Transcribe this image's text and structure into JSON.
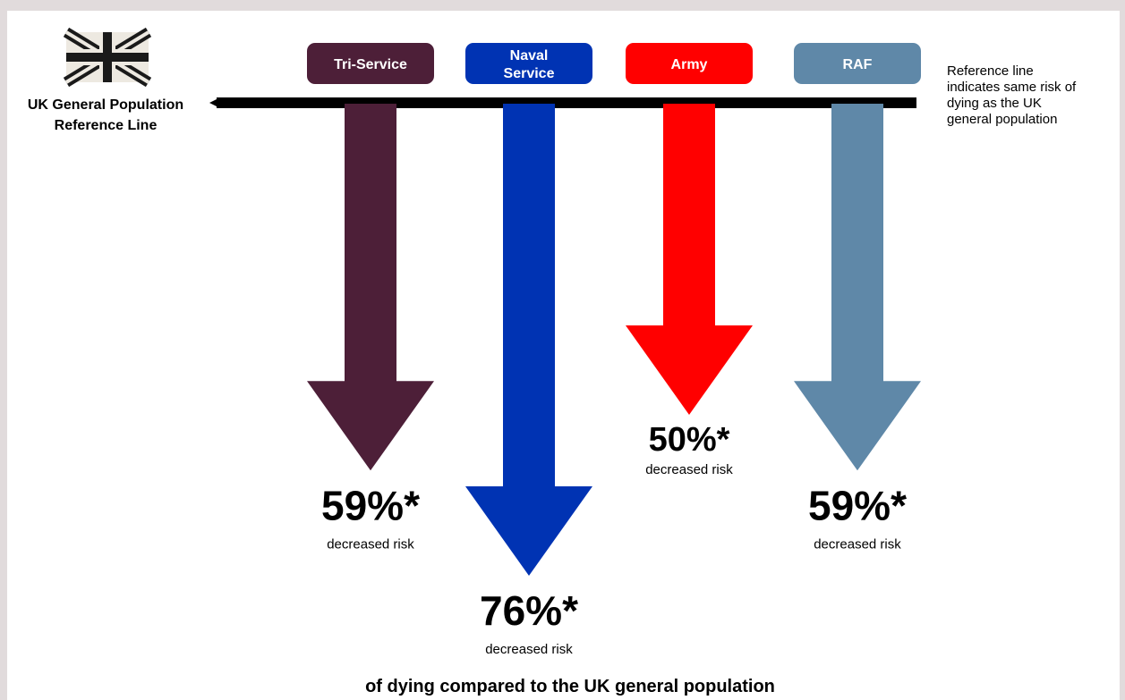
{
  "ref_label": [
    "UK General Population",
    "Reference Line"
  ],
  "ref_note": [
    "Reference line",
    "indicates same risk of",
    "dying as the UK",
    "general population"
  ],
  "footer": "of dying compared to the UK general population",
  "icons": {
    "flag": "uk-flag-icon"
  },
  "chart_data": {
    "type": "bar",
    "orientation": "downward-arrows",
    "categories": [
      "Tri-Service",
      "Naval Service",
      "Army",
      "RAF"
    ],
    "category_labels": [
      [
        "Tri-Service"
      ],
      [
        "Naval",
        "Service"
      ],
      [
        "Army"
      ],
      [
        "RAF"
      ]
    ],
    "values": [
      59,
      76,
      50,
      59
    ],
    "value_labels": [
      "59%*",
      "76%*",
      "50%*",
      "59%*"
    ],
    "sub_label": "decreased risk",
    "colors": [
      "#4d1f38",
      "#0033b3",
      "#ff0000",
      "#5f88a8"
    ],
    "baseline": 0
  }
}
